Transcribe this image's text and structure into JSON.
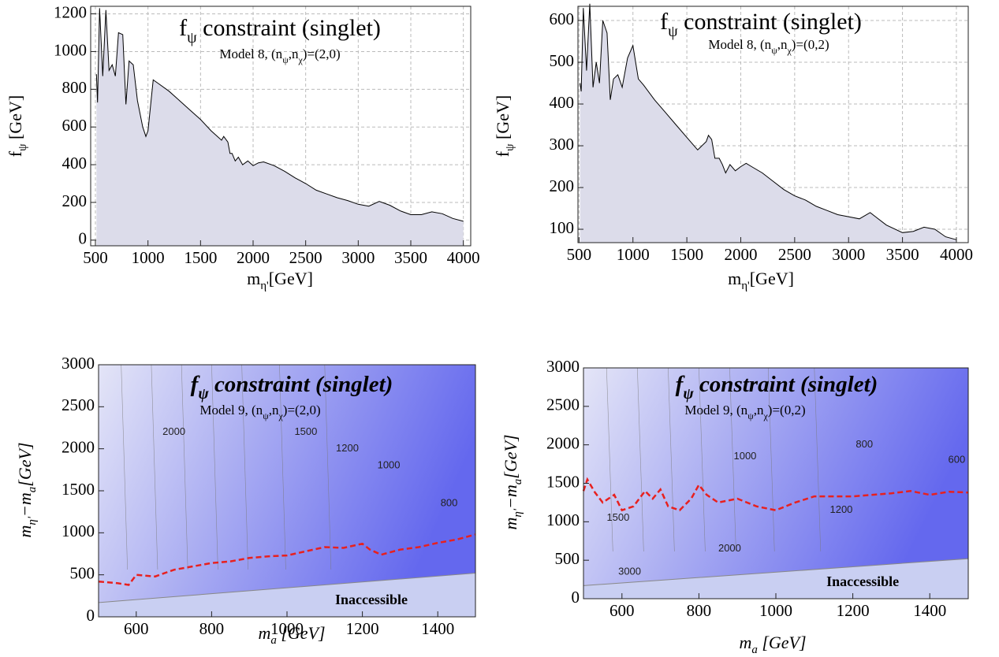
{
  "chart_data": [
    {
      "type": "area",
      "title": [
        "f",
        "ψ",
        " constraint (singlet)"
      ],
      "subtitle": [
        "Model 8, (n",
        "ψ",
        ",n",
        "χ",
        ")=(2,0)"
      ],
      "xlabel": [
        "m",
        "η'",
        "[GeV]"
      ],
      "ylabel": [
        "f",
        "ψ",
        " [GeV]"
      ],
      "x": [
        510,
        520,
        540,
        570,
        600,
        630,
        660,
        690,
        720,
        760,
        790,
        820,
        860,
        900,
        950,
        980,
        1000,
        1050,
        1100,
        1200,
        1300,
        1400,
        1500,
        1600,
        1700,
        1720,
        1760,
        1780,
        1800,
        1830,
        1860,
        1900,
        1950,
        2000,
        2050,
        2100,
        2200,
        2300,
        2400,
        2500,
        2600,
        2700,
        2800,
        2900,
        3000,
        3100,
        3200,
        3300,
        3400,
        3500,
        3600,
        3700,
        3800,
        3900,
        4000
      ],
      "values": [
        880,
        730,
        1230,
        870,
        1220,
        900,
        930,
        870,
        1100,
        1090,
        720,
        950,
        930,
        740,
        600,
        550,
        580,
        850,
        830,
        790,
        740,
        690,
        640,
        580,
        530,
        550,
        520,
        460,
        460,
        420,
        440,
        400,
        420,
        395,
        410,
        415,
        395,
        365,
        330,
        300,
        265,
        245,
        225,
        210,
        190,
        180,
        205,
        185,
        155,
        135,
        135,
        150,
        140,
        115,
        100
      ],
      "color": "#000000",
      "fill": "#dcdcea",
      "xlim": [
        455,
        4070
      ],
      "ylim": [
        -30,
        1240
      ],
      "xticks": [
        500,
        1000,
        1500,
        2000,
        2500,
        3000,
        3500,
        4000
      ],
      "yticks": [
        0,
        200,
        400,
        600,
        800,
        1000,
        1200
      ],
      "grid": true
    },
    {
      "type": "area",
      "title": [
        "f",
        "ψ",
        " constraint (singlet)"
      ],
      "subtitle": [
        "Model 8, (n",
        "ψ",
        ",n",
        "χ",
        ")=(0,2)"
      ],
      "xlabel": [
        "m",
        "η'",
        "[GeV]"
      ],
      "ylabel": [
        "f",
        "ψ",
        " [GeV]"
      ],
      "x": [
        510,
        520,
        540,
        570,
        600,
        630,
        660,
        690,
        720,
        760,
        790,
        820,
        860,
        900,
        950,
        1000,
        1050,
        1100,
        1200,
        1300,
        1400,
        1500,
        1600,
        1680,
        1700,
        1730,
        1760,
        1800,
        1830,
        1860,
        1900,
        1950,
        2000,
        2050,
        2100,
        2200,
        2300,
        2400,
        2500,
        2600,
        2700,
        2800,
        2900,
        3000,
        3100,
        3200,
        3250,
        3350,
        3500,
        3600,
        3700,
        3800,
        3900,
        4000
      ],
      "values": [
        450,
        430,
        630,
        480,
        640,
        440,
        500,
        450,
        600,
        570,
        410,
        460,
        470,
        440,
        510,
        540,
        460,
        445,
        410,
        380,
        350,
        320,
        290,
        310,
        325,
        315,
        270,
        270,
        255,
        235,
        255,
        240,
        250,
        258,
        250,
        235,
        215,
        195,
        180,
        170,
        155,
        145,
        135,
        130,
        125,
        140,
        130,
        110,
        92,
        95,
        105,
        100,
        82,
        75
      ],
      "color": "#000000",
      "fill": "#dcdcea",
      "xlim": [
        490,
        4110
      ],
      "ylim": [
        68,
        634
      ],
      "xticks": [
        500,
        1000,
        1500,
        2000,
        2500,
        3000,
        3500,
        4000
      ],
      "yticks": [
        100,
        200,
        300,
        400,
        500,
        600
      ],
      "grid": true
    },
    {
      "type": "contour",
      "title": [
        "f",
        "ψ",
        " constraint (singlet)"
      ],
      "subtitle": [
        "Model 9, (n",
        "ψ",
        ",n",
        "χ",
        ")=(2,0)"
      ],
      "xlabel": [
        "m",
        "a",
        " [GeV]"
      ],
      "ylabel": [
        "m",
        "η'",
        "−m",
        "a",
        "[GeV]"
      ],
      "curve": {
        "x": [
          500,
          550,
          580,
          600,
          650,
          700,
          750,
          800,
          850,
          900,
          950,
          1000,
          1050,
          1100,
          1150,
          1200,
          1220,
          1250,
          1300,
          1350,
          1400,
          1450,
          1500
        ],
        "y": [
          420,
          400,
          380,
          500,
          480,
          560,
          600,
          640,
          660,
          700,
          720,
          730,
          780,
          830,
          820,
          870,
          800,
          740,
          800,
          830,
          880,
          920,
          980
        ],
        "color": "#e8201e"
      },
      "annotations": [
        {
          "text": "2000",
          "x": 700,
          "y": 2200
        },
        {
          "text": "1500",
          "x": 1050,
          "y": 2200
        },
        {
          "text": "1200",
          "x": 1160,
          "y": 2000
        },
        {
          "text": "1000",
          "x": 1270,
          "y": 1800
        },
        {
          "text": "800",
          "x": 1430,
          "y": 1350
        }
      ],
      "inaccessible": {
        "label": "Inaccessible",
        "x": [
          500,
          1500
        ],
        "y": [
          170,
          520
        ]
      },
      "xlim": [
        500,
        1500
      ],
      "ylim": [
        0,
        3000
      ],
      "xticks": [
        600,
        800,
        1000,
        1200,
        1400
      ],
      "yticks": [
        0,
        500,
        1000,
        1500,
        2000,
        2500,
        3000
      ]
    },
    {
      "type": "contour",
      "title": [
        "f",
        "ψ",
        " constraint (singlet)"
      ],
      "subtitle": [
        "Model 9, (n",
        "ψ",
        ",n",
        "χ",
        ")=(0,2)"
      ],
      "xlabel": [
        "m",
        "a",
        " [GeV]"
      ],
      "ylabel": [
        "m",
        "η'",
        "−m",
        "a",
        "[GeV]"
      ],
      "curve": {
        "x": [
          500,
          510,
          530,
          550,
          580,
          600,
          630,
          660,
          680,
          700,
          720,
          750,
          780,
          800,
          820,
          850,
          900,
          950,
          1000,
          1050,
          1100,
          1200,
          1300,
          1350,
          1400,
          1450,
          1500
        ],
        "y": [
          1400,
          1550,
          1380,
          1250,
          1350,
          1150,
          1200,
          1400,
          1300,
          1420,
          1200,
          1150,
          1300,
          1480,
          1350,
          1250,
          1300,
          1200,
          1150,
          1250,
          1330,
          1330,
          1370,
          1400,
          1350,
          1390,
          1380
        ],
        "color": "#e8201e"
      },
      "annotations": [
        {
          "text": "1000",
          "x": 920,
          "y": 1850
        },
        {
          "text": "800",
          "x": 1230,
          "y": 2000
        },
        {
          "text": "600",
          "x": 1470,
          "y": 1800
        },
        {
          "text": "1200",
          "x": 1170,
          "y": 1150
        },
        {
          "text": "1500",
          "x": 590,
          "y": 1050
        },
        {
          "text": "2000",
          "x": 880,
          "y": 650
        },
        {
          "text": "3000",
          "x": 620,
          "y": 350
        }
      ],
      "inaccessible": {
        "label": "Inaccessible",
        "x": [
          500,
          1500
        ],
        "y": [
          170,
          520
        ]
      },
      "xlim": [
        500,
        1500
      ],
      "ylim": [
        0,
        3000
      ],
      "xticks": [
        600,
        800,
        1000,
        1200,
        1400
      ],
      "yticks": [
        0,
        500,
        1000,
        1500,
        2000,
        2500,
        3000
      ]
    }
  ]
}
